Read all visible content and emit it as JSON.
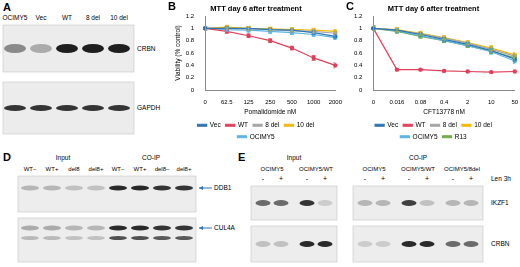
{
  "panel_letters": [
    "A",
    "B",
    "C",
    "D",
    "E"
  ],
  "chart_data": [
    {
      "type": "line",
      "title": "MTT day 6 after treatment",
      "x_label": "Pomalidomide nM",
      "y_label": "Viability (% control)",
      "categories": [
        "0",
        "62.5",
        "125",
        "250",
        "500",
        "1000",
        "2000"
      ],
      "ylim": [
        0,
        1.2
      ],
      "yticks": [
        0,
        0.2,
        0.4,
        0.6,
        0.8,
        1,
        1.2
      ],
      "grid": false,
      "legend": "bottom",
      "marker": "circle",
      "series": [
        {
          "name": "Vec",
          "color": "#2e75b6",
          "values": [
            1,
            1.0,
            1.0,
            0.98,
            0.97,
            0.93,
            0.87
          ],
          "errors": [
            0.03,
            0.03,
            0.03,
            0.03,
            0.03,
            0.03,
            0.04
          ]
        },
        {
          "name": "WT",
          "color": "#e0405a",
          "values": [
            1,
            0.95,
            0.88,
            0.8,
            0.68,
            0.52,
            0.4
          ],
          "errors": [
            0.03,
            0.03,
            0.03,
            0.03,
            0.03,
            0.04,
            0.04
          ]
        },
        {
          "name": "8 del",
          "color": "#a5a5a5",
          "values": [
            1,
            1.0,
            0.99,
            0.98,
            0.96,
            0.95,
            0.92
          ],
          "errors": [
            0.03,
            0.04,
            0.03,
            0.03,
            0.03,
            0.03,
            0.03
          ]
        },
        {
          "name": "10 del",
          "color": "#f2b800",
          "values": [
            1,
            1.02,
            1.0,
            0.99,
            0.98,
            0.97,
            0.95
          ],
          "errors": [
            0.03,
            0.03,
            0.03,
            0.03,
            0.03,
            0.03,
            0.03
          ]
        },
        {
          "name": "OCIMY5",
          "color": "#5bb5e5",
          "values": [
            1,
            0.98,
            0.97,
            0.95,
            0.93,
            0.9,
            0.85
          ],
          "errors": [
            0.03,
            0.03,
            0.03,
            0.03,
            0.03,
            0.03,
            0.03
          ]
        }
      ]
    },
    {
      "type": "line",
      "title": "MTT day 6 after treatment",
      "x_label": "CFT13778 nM",
      "categories": [
        "0",
        "0.016",
        "0.08",
        "0.4",
        "2",
        "10",
        "50"
      ],
      "ylim": [
        0,
        1.2
      ],
      "yticks": [
        0,
        0.2,
        0.4,
        0.6,
        0.8,
        1,
        1.2
      ],
      "grid": false,
      "legend": "bottom",
      "marker": "circle",
      "series": [
        {
          "name": "Vec",
          "color": "#2e75b6",
          "values": [
            1,
            0.97,
            0.9,
            0.82,
            0.74,
            0.64,
            0.5
          ],
          "errors": [
            0.04,
            0.03,
            0.03,
            0.03,
            0.03,
            0.04,
            0.04
          ]
        },
        {
          "name": "WT",
          "color": "#e0405a",
          "values": [
            1,
            0.33,
            0.33,
            0.31,
            0.3,
            0.29,
            0.3
          ],
          "errors": [
            0.04,
            0.01,
            0.01,
            0.01,
            0.01,
            0.01,
            0.01
          ]
        },
        {
          "name": "8 del",
          "color": "#a5a5a5",
          "values": [
            1,
            0.97,
            0.91,
            0.84,
            0.76,
            0.66,
            0.55
          ],
          "errors": [
            0.04,
            0.03,
            0.03,
            0.03,
            0.03,
            0.04,
            0.04
          ]
        },
        {
          "name": "10 del",
          "color": "#f2b800",
          "values": [
            1,
            0.98,
            0.92,
            0.85,
            0.77,
            0.68,
            0.57
          ],
          "errors": [
            0.04,
            0.03,
            0.03,
            0.03,
            0.03,
            0.04,
            0.04
          ]
        },
        {
          "name": "OCIMY5",
          "color": "#5bb5e5",
          "values": [
            1,
            0.96,
            0.88,
            0.8,
            0.72,
            0.62,
            0.47
          ],
          "errors": [
            0.04,
            0.03,
            0.03,
            0.03,
            0.03,
            0.04,
            0.04
          ]
        },
        {
          "name": "R13",
          "color": "#70ad47",
          "values": [
            1,
            0.95,
            0.87,
            0.8,
            0.72,
            0.63,
            0.52
          ],
          "errors": [
            0.04,
            0.03,
            0.03,
            0.03,
            0.03,
            0.04,
            0.04
          ]
        }
      ]
    }
  ],
  "blot_a": {
    "lanes": [
      "OCIMY5",
      "Vec",
      "WT",
      "8 del",
      "10 del"
    ],
    "rows": [
      "CRBN",
      "GAPDH"
    ]
  },
  "blot_d": {
    "groups": [
      {
        "name": "Input",
        "lanes": [
          "WT–",
          "WT+",
          "del8",
          "del8+"
        ]
      },
      {
        "name": "CO-IP",
        "lanes": [
          "WT–",
          "WT+",
          "del8–",
          "del8+"
        ]
      }
    ],
    "rows": [
      "DDB1",
      "CUL4A"
    ]
  },
  "blot_e": {
    "groups": [
      {
        "name": "Input",
        "samples": [
          "OCIMY5",
          "OCIMY5/WT"
        ]
      },
      {
        "name": "CO-IP",
        "samples": [
          "OCIMY5",
          "OCIMY5/WT",
          "OCIMY5/8del"
        ]
      }
    ],
    "treatment": {
      "label": "Len 3h",
      "signs": [
        "-",
        "+"
      ]
    },
    "rows": [
      "IKZF1",
      "CRBN"
    ]
  }
}
